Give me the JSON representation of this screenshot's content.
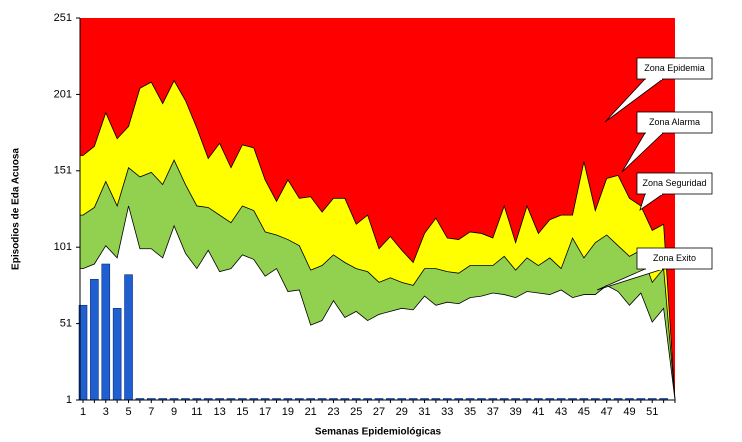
{
  "chart_data": {
    "type": "endemic-channel",
    "y_label": "Episodios de Eda Acuosa",
    "x_label": "Semanas Epidemiológicas",
    "categories": [
      1,
      null,
      3,
      null,
      5,
      null,
      7,
      null,
      9,
      null,
      11,
      null,
      13,
      null,
      15,
      null,
      17,
      null,
      19,
      null,
      21,
      null,
      23,
      null,
      25,
      null,
      27,
      null,
      29,
      null,
      31,
      null,
      33,
      null,
      35,
      null,
      37,
      null,
      39,
      null,
      41,
      null,
      43,
      null,
      45,
      null,
      47,
      null,
      49,
      null,
      51,
      null,
      null
    ],
    "ylim": [
      1,
      251
    ],
    "yticks": [
      1,
      51,
      101,
      151,
      201,
      251
    ],
    "epidemia": {
      "name": "Zona Epidemia",
      "color": "#ff0000"
    },
    "series": [
      {
        "name": "Zona Alarma",
        "color": "#ffff00",
        "values": [
          161,
          167,
          189,
          172,
          180,
          205,
          209,
          195,
          210,
          197,
          179,
          159,
          169,
          153,
          168,
          166,
          145,
          131,
          145,
          133,
          134,
          124,
          133,
          133,
          116,
          122,
          100,
          108,
          99,
          91,
          110,
          120,
          107,
          106,
          111,
          110,
          107,
          128,
          104,
          128,
          110,
          119,
          122,
          122,
          157,
          125,
          146,
          148,
          133,
          128,
          112,
          116,
          1
        ]
      },
      {
        "name": "Zona Seguridad",
        "color": "#92d050",
        "values": [
          122,
          127,
          144,
          128,
          153,
          147,
          150,
          142,
          158,
          142,
          128,
          127,
          122,
          117,
          128,
          125,
          111,
          109,
          106,
          102,
          86,
          89,
          96,
          91,
          87,
          85,
          78,
          81,
          78,
          76,
          87,
          87,
          85,
          84,
          89,
          89,
          89,
          95,
          86,
          94,
          89,
          94,
          87,
          107,
          94,
          104,
          109,
          102,
          95,
          99,
          78,
          87,
          1
        ]
      },
      {
        "name": "Zona Exito",
        "color": "#ffffff",
        "values": [
          87,
          90,
          102,
          94,
          128,
          100,
          100,
          94,
          115,
          97,
          87,
          99,
          85,
          87,
          96,
          93,
          82,
          87,
          72,
          73,
          50,
          53,
          66,
          55,
          59,
          53,
          57,
          59,
          61,
          60,
          69,
          63,
          65,
          64,
          68,
          69,
          71,
          70,
          68,
          72,
          71,
          70,
          73,
          68,
          70,
          70,
          76,
          72,
          63,
          71,
          52,
          61,
          1
        ]
      }
    ],
    "bars": {
      "color": "#1f5fd0",
      "values": [
        63,
        80,
        90,
        61,
        83,
        0,
        0,
        0,
        0,
        0,
        0,
        0,
        0,
        0,
        0,
        0,
        0,
        0,
        0,
        0,
        0,
        0,
        0,
        0,
        0,
        0,
        0,
        0,
        0,
        0,
        0,
        0,
        0,
        0,
        0,
        0,
        0,
        0,
        0,
        0,
        0,
        0,
        0,
        0,
        0,
        0,
        0,
        0,
        0,
        0,
        0,
        0,
        null
      ]
    }
  }
}
